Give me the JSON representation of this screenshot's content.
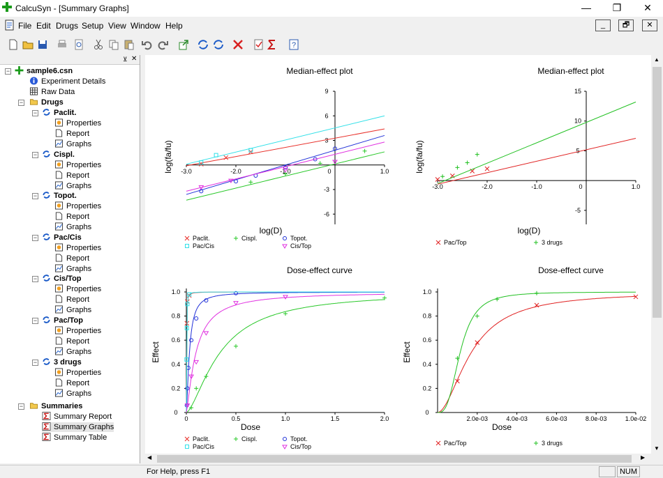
{
  "window": {
    "title": "CalcuSyn - [Summary Graphs]",
    "minimize": "—",
    "maximize": "❐",
    "close": "✕"
  },
  "menu": {
    "items": [
      "File",
      "Edit",
      "Drugs",
      "Setup",
      "View",
      "Window",
      "Help"
    ]
  },
  "mdi": {
    "minimize": "_",
    "restore": "🗗",
    "close": "✕"
  },
  "tree": {
    "root": "sample6.csn",
    "experiment_details": "Experiment Details",
    "raw_data": "Raw Data",
    "drugs": "Drugs",
    "drug_list": [
      "Paclit.",
      "Cispl.",
      "Topot.",
      "Pac/Cis",
      "Cis/Top",
      "Pac/Top",
      "3 drugs"
    ],
    "children": [
      "Properties",
      "Report",
      "Graphs"
    ],
    "summaries": "Summaries",
    "summary_items": [
      "Summary Report",
      "Summary Graphs",
      "Summary Table"
    ]
  },
  "status": {
    "message": "For Help, press F1",
    "num": "NUM"
  },
  "colors": {
    "paclit": "#e8302a",
    "cispl": "#28c828",
    "topot": "#2030d8",
    "paccis": "#30e0e8",
    "cistop": "#e030e0",
    "pactop": "#e02020",
    "three": "#20c020"
  },
  "charts": [
    {
      "id": "me1",
      "title": "Median-effect plot",
      "xlabel": "log(D)",
      "ylabel": "log(fa/fu)",
      "xticks": [
        "-3.0",
        "-2.0",
        "-1.0",
        "0",
        "1.0"
      ],
      "yticks": [
        "9",
        "6",
        "3",
        "-3",
        "-6"
      ],
      "legend": [
        "Paclit.",
        "Cispl.",
        "Topot.",
        "Pac/Cis",
        "Cis/Top"
      ]
    },
    {
      "id": "me2",
      "title": "Median-effect plot",
      "xlabel": "log(D)",
      "ylabel": "log(fa/fu)",
      "xticks": [
        "-3.0",
        "-2.0",
        "-1.0",
        "0",
        "1.0"
      ],
      "yticks": [
        "15",
        "10",
        "5",
        "-5"
      ],
      "legend": [
        "Pac/Top",
        "3 drugs"
      ]
    },
    {
      "id": "de1",
      "title": "Dose-effect curve",
      "xlabel": "Dose",
      "ylabel": "Effect",
      "xticks": [
        "0",
        "0.5",
        "1.0",
        "1.5",
        "2.0"
      ],
      "yticks": [
        "1.0",
        "0.8",
        "0.6",
        "0.4",
        "0.2",
        "0"
      ],
      "legend": [
        "Paclit.",
        "Cispl.",
        "Topot.",
        "Pac/Cis",
        "Cis/Top"
      ]
    },
    {
      "id": "de2",
      "title": "Dose-effect curve",
      "xlabel": "Dose",
      "ylabel": "Effect",
      "xticks": [
        "2.0e-03",
        "4.0e-03",
        "6.0e-03",
        "8.0e-03",
        "1.0e-02"
      ],
      "yticks": [
        "1.0",
        "0.8",
        "0.6",
        "0.4",
        "0.2",
        "0"
      ],
      "legend": [
        "Pac/Top",
        "3 drugs"
      ]
    }
  ],
  "chart_data": [
    {
      "type": "scatter",
      "title": "Median-effect plot",
      "xlabel": "log(D)",
      "ylabel": "log(fa/fu)",
      "xlim": [
        -3.0,
        1.0
      ],
      "ylim": [
        -7,
        9
      ],
      "series": [
        {
          "name": "Paclit.",
          "lines": true,
          "points": [
            [
              -2.7,
              0.1
            ],
            [
              -2.2,
              0.9
            ],
            [
              -1.7,
              1.6
            ]
          ],
          "line": [
            [
              -3,
              -0.1
            ],
            [
              1,
              4.4
            ]
          ]
        },
        {
          "name": "Cispl.",
          "lines": true,
          "points": [
            [
              -1.7,
              -2.1
            ],
            [
              -1.0,
              -1.1
            ],
            [
              -0.3,
              0.2
            ],
            [
              0.6,
              1.7
            ]
          ],
          "line": [
            [
              -3,
              -4.3
            ],
            [
              1,
              1.6
            ]
          ]
        },
        {
          "name": "Topot.",
          "lines": true,
          "points": [
            [
              -2.7,
              -3.2
            ],
            [
              -2.0,
              -2.0
            ],
            [
              -1.6,
              -1.3
            ],
            [
              -1.0,
              -0.3
            ],
            [
              -0.4,
              0.7
            ],
            [
              0.0,
              2.0
            ]
          ],
          "line": [
            [
              -3,
              -3.6
            ],
            [
              1,
              3.6
            ]
          ]
        },
        {
          "name": "Pac/Cis",
          "lines": true,
          "points": [
            [
              -2.7,
              0.3
            ],
            [
              -2.4,
              1.2
            ],
            [
              -1.7,
              1.8
            ]
          ],
          "line": [
            [
              -3,
              0.1
            ],
            [
              1,
              6.0
            ]
          ]
        },
        {
          "name": "Cis/Top",
          "lines": true,
          "points": [
            [
              -2.7,
              -2.7
            ],
            [
              -2.1,
              -1.9
            ],
            [
              -1.0,
              -0.6
            ],
            [
              0.0,
              0.4
            ]
          ],
          "line": [
            [
              -3,
              -3.2
            ],
            [
              1,
              2.8
            ]
          ]
        }
      ]
    },
    {
      "type": "scatter",
      "title": "Median-effect plot",
      "xlabel": "log(D)",
      "ylabel": "log(fa/fu)",
      "xlim": [
        -3.0,
        1.0
      ],
      "ylim": [
        -7,
        15
      ],
      "series": [
        {
          "name": "Pac/Top",
          "points": [
            [
              -3.0,
              0.2
            ],
            [
              -2.7,
              0.8
            ],
            [
              -2.3,
              1.6
            ],
            [
              -2.0,
              2.0
            ]
          ],
          "line": [
            [
              -3,
              -0.6
            ],
            [
              1,
              7.1
            ]
          ]
        },
        {
          "name": "3 drugs",
          "points": [
            [
              -2.9,
              0.7
            ],
            [
              -2.6,
              2.2
            ],
            [
              -2.4,
              3.0
            ],
            [
              -2.2,
              4.4
            ]
          ],
          "line": [
            [
              -3,
              -0.5
            ],
            [
              1,
              13.2
            ]
          ]
        }
      ]
    },
    {
      "type": "line",
      "title": "Dose-effect curve",
      "xlabel": "Dose",
      "ylabel": "Effect",
      "xlim": [
        0,
        2.0
      ],
      "ylim": [
        0,
        1.0
      ],
      "series": [
        {
          "name": "Paclit.",
          "points": [
            [
              0.005,
              0.74
            ],
            [
              0.01,
              0.92
            ],
            [
              0.03,
              0.97
            ]
          ]
        },
        {
          "name": "Cispl.",
          "points": [
            [
              0.05,
              0.04
            ],
            [
              0.1,
              0.2
            ],
            [
              0.2,
              0.3
            ],
            [
              0.5,
              0.55
            ],
            [
              1.0,
              0.82
            ],
            [
              2.0,
              0.95
            ]
          ]
        },
        {
          "name": "Topot.",
          "points": [
            [
              0.005,
              0.06
            ],
            [
              0.01,
              0.2
            ],
            [
              0.02,
              0.37
            ],
            [
              0.05,
              0.6
            ],
            [
              0.1,
              0.78
            ],
            [
              0.2,
              0.93
            ],
            [
              0.5,
              0.99
            ]
          ]
        },
        {
          "name": "Pac/Cis",
          "points": [
            [
              0.002,
              0.44
            ],
            [
              0.005,
              0.7
            ],
            [
              0.01,
              0.9
            ],
            [
              0.03,
              0.98
            ]
          ]
        },
        {
          "name": "Cis/Top",
          "points": [
            [
              0.01,
              0.06
            ],
            [
              0.05,
              0.3
            ],
            [
              0.1,
              0.42
            ],
            [
              0.2,
              0.66
            ],
            [
              0.5,
              0.91
            ],
            [
              1.0,
              0.96
            ]
          ]
        }
      ]
    },
    {
      "type": "line",
      "title": "Dose-effect curve",
      "xlabel": "Dose",
      "ylabel": "Effect",
      "xlim": [
        0,
        0.01
      ],
      "ylim": [
        0,
        1.0
      ],
      "series": [
        {
          "name": "Pac/Top",
          "points": [
            [
              0.001,
              0.26
            ],
            [
              0.002,
              0.58
            ],
            [
              0.005,
              0.89
            ],
            [
              0.01,
              0.96
            ]
          ]
        },
        {
          "name": "3 drugs",
          "points": [
            [
              0.001,
              0.45
            ],
            [
              0.002,
              0.8
            ],
            [
              0.003,
              0.94
            ],
            [
              0.005,
              0.99
            ]
          ]
        }
      ]
    }
  ]
}
